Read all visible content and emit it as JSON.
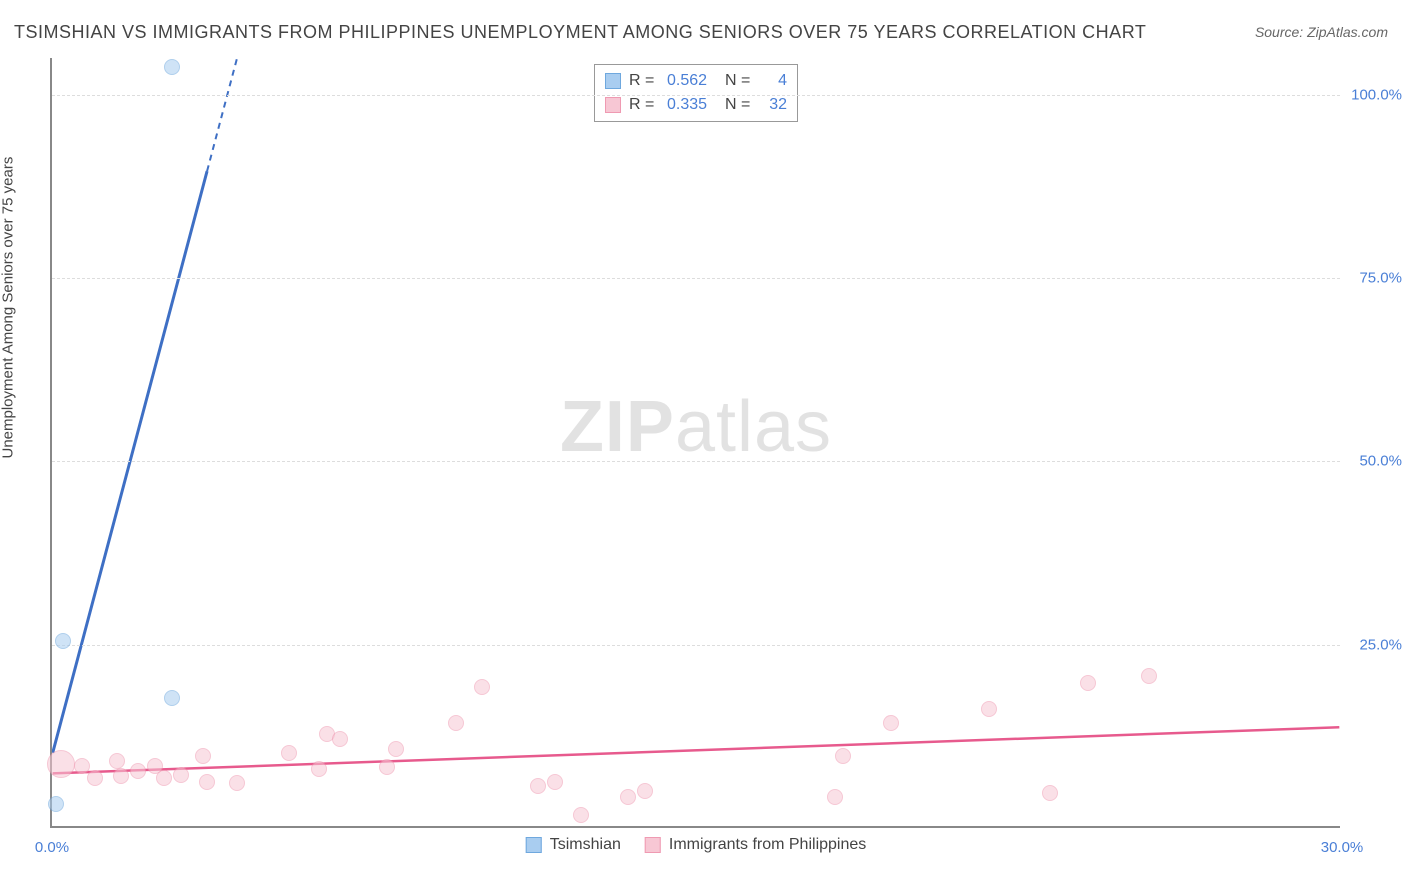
{
  "title": "TSIMSHIAN VS IMMIGRANTS FROM PHILIPPINES UNEMPLOYMENT AMONG SENIORS OVER 75 YEARS CORRELATION CHART",
  "source": "Source: ZipAtlas.com",
  "y_axis_label": "Unemployment Among Seniors over 75 years",
  "watermark_bold": "ZIP",
  "watermark_light": "atlas",
  "chart": {
    "type": "scatter",
    "xlim": [
      0,
      30
    ],
    "ylim": [
      0,
      105
    ],
    "x_ticks": [
      {
        "v": 0,
        "label": "0.0%"
      },
      {
        "v": 30,
        "label": "30.0%"
      }
    ],
    "y_ticks": [
      {
        "v": 25,
        "label": "25.0%"
      },
      {
        "v": 50,
        "label": "50.0%"
      },
      {
        "v": 75,
        "label": "75.0%"
      },
      {
        "v": 100,
        "label": "100.0%"
      }
    ],
    "background_color": "#ffffff",
    "grid_color": "#dddddd",
    "axis_color": "#888888",
    "tick_label_color": "#4a7fd6",
    "series": [
      {
        "name": "Tsimshian",
        "label": "Tsimshian",
        "fill_color": "#a9cdf0",
        "stroke_color": "#6fa8de",
        "line_color": "#3e6fc4",
        "fill_opacity": 0.55,
        "R": "0.562",
        "N": "4",
        "marker_radius": 8,
        "points": [
          {
            "x": 0.1,
            "y": 3.0
          },
          {
            "x": 0.25,
            "y": 25.2
          },
          {
            "x": 2.8,
            "y": 17.5
          },
          {
            "x": 2.8,
            "y": 103.5
          }
        ],
        "trend": {
          "x1": 0,
          "y1": 10,
          "x2": 4.3,
          "y2": 105,
          "dash_from_x": 3.6
        }
      },
      {
        "name": "Immigrants from Philippines",
        "label": "Immigrants from Philippines",
        "fill_color": "#f7c7d4",
        "stroke_color": "#ef9ab2",
        "line_color": "#e75a8d",
        "fill_opacity": 0.55,
        "R": "0.335",
        "N": "32",
        "marker_radius": 8,
        "points": [
          {
            "x": 0.2,
            "y": 8.5,
            "r": 14
          },
          {
            "x": 0.7,
            "y": 8.2
          },
          {
            "x": 1.0,
            "y": 6.5
          },
          {
            "x": 1.5,
            "y": 8.8
          },
          {
            "x": 1.6,
            "y": 6.8
          },
          {
            "x": 2.0,
            "y": 7.5
          },
          {
            "x": 2.4,
            "y": 8.2
          },
          {
            "x": 2.6,
            "y": 6.5
          },
          {
            "x": 3.0,
            "y": 7.0
          },
          {
            "x": 3.5,
            "y": 9.5
          },
          {
            "x": 3.6,
            "y": 6.0
          },
          {
            "x": 4.3,
            "y": 5.8
          },
          {
            "x": 5.5,
            "y": 10.0
          },
          {
            "x": 6.2,
            "y": 7.8
          },
          {
            "x": 6.4,
            "y": 12.5
          },
          {
            "x": 6.7,
            "y": 11.8
          },
          {
            "x": 7.8,
            "y": 8.0
          },
          {
            "x": 8.0,
            "y": 10.5
          },
          {
            "x": 9.4,
            "y": 14.0
          },
          {
            "x": 10.0,
            "y": 19.0
          },
          {
            "x": 11.3,
            "y": 5.5
          },
          {
            "x": 11.7,
            "y": 6.0
          },
          {
            "x": 12.3,
            "y": 1.5
          },
          {
            "x": 13.4,
            "y": 4.0
          },
          {
            "x": 13.8,
            "y": 4.8
          },
          {
            "x": 18.2,
            "y": 4.0
          },
          {
            "x": 18.4,
            "y": 9.5
          },
          {
            "x": 19.5,
            "y": 14.0
          },
          {
            "x": 21.8,
            "y": 16.0
          },
          {
            "x": 23.2,
            "y": 4.5
          },
          {
            "x": 24.1,
            "y": 19.5
          },
          {
            "x": 25.5,
            "y": 20.5
          }
        ],
        "trend": {
          "x1": 0,
          "y1": 7.2,
          "x2": 30,
          "y2": 13.5
        }
      }
    ]
  },
  "legend_bottom": [
    {
      "label": "Tsimshian",
      "fill": "#a9cdf0",
      "stroke": "#6fa8de"
    },
    {
      "label": "Immigrants from Philippines",
      "fill": "#f7c7d4",
      "stroke": "#ef9ab2"
    }
  ]
}
